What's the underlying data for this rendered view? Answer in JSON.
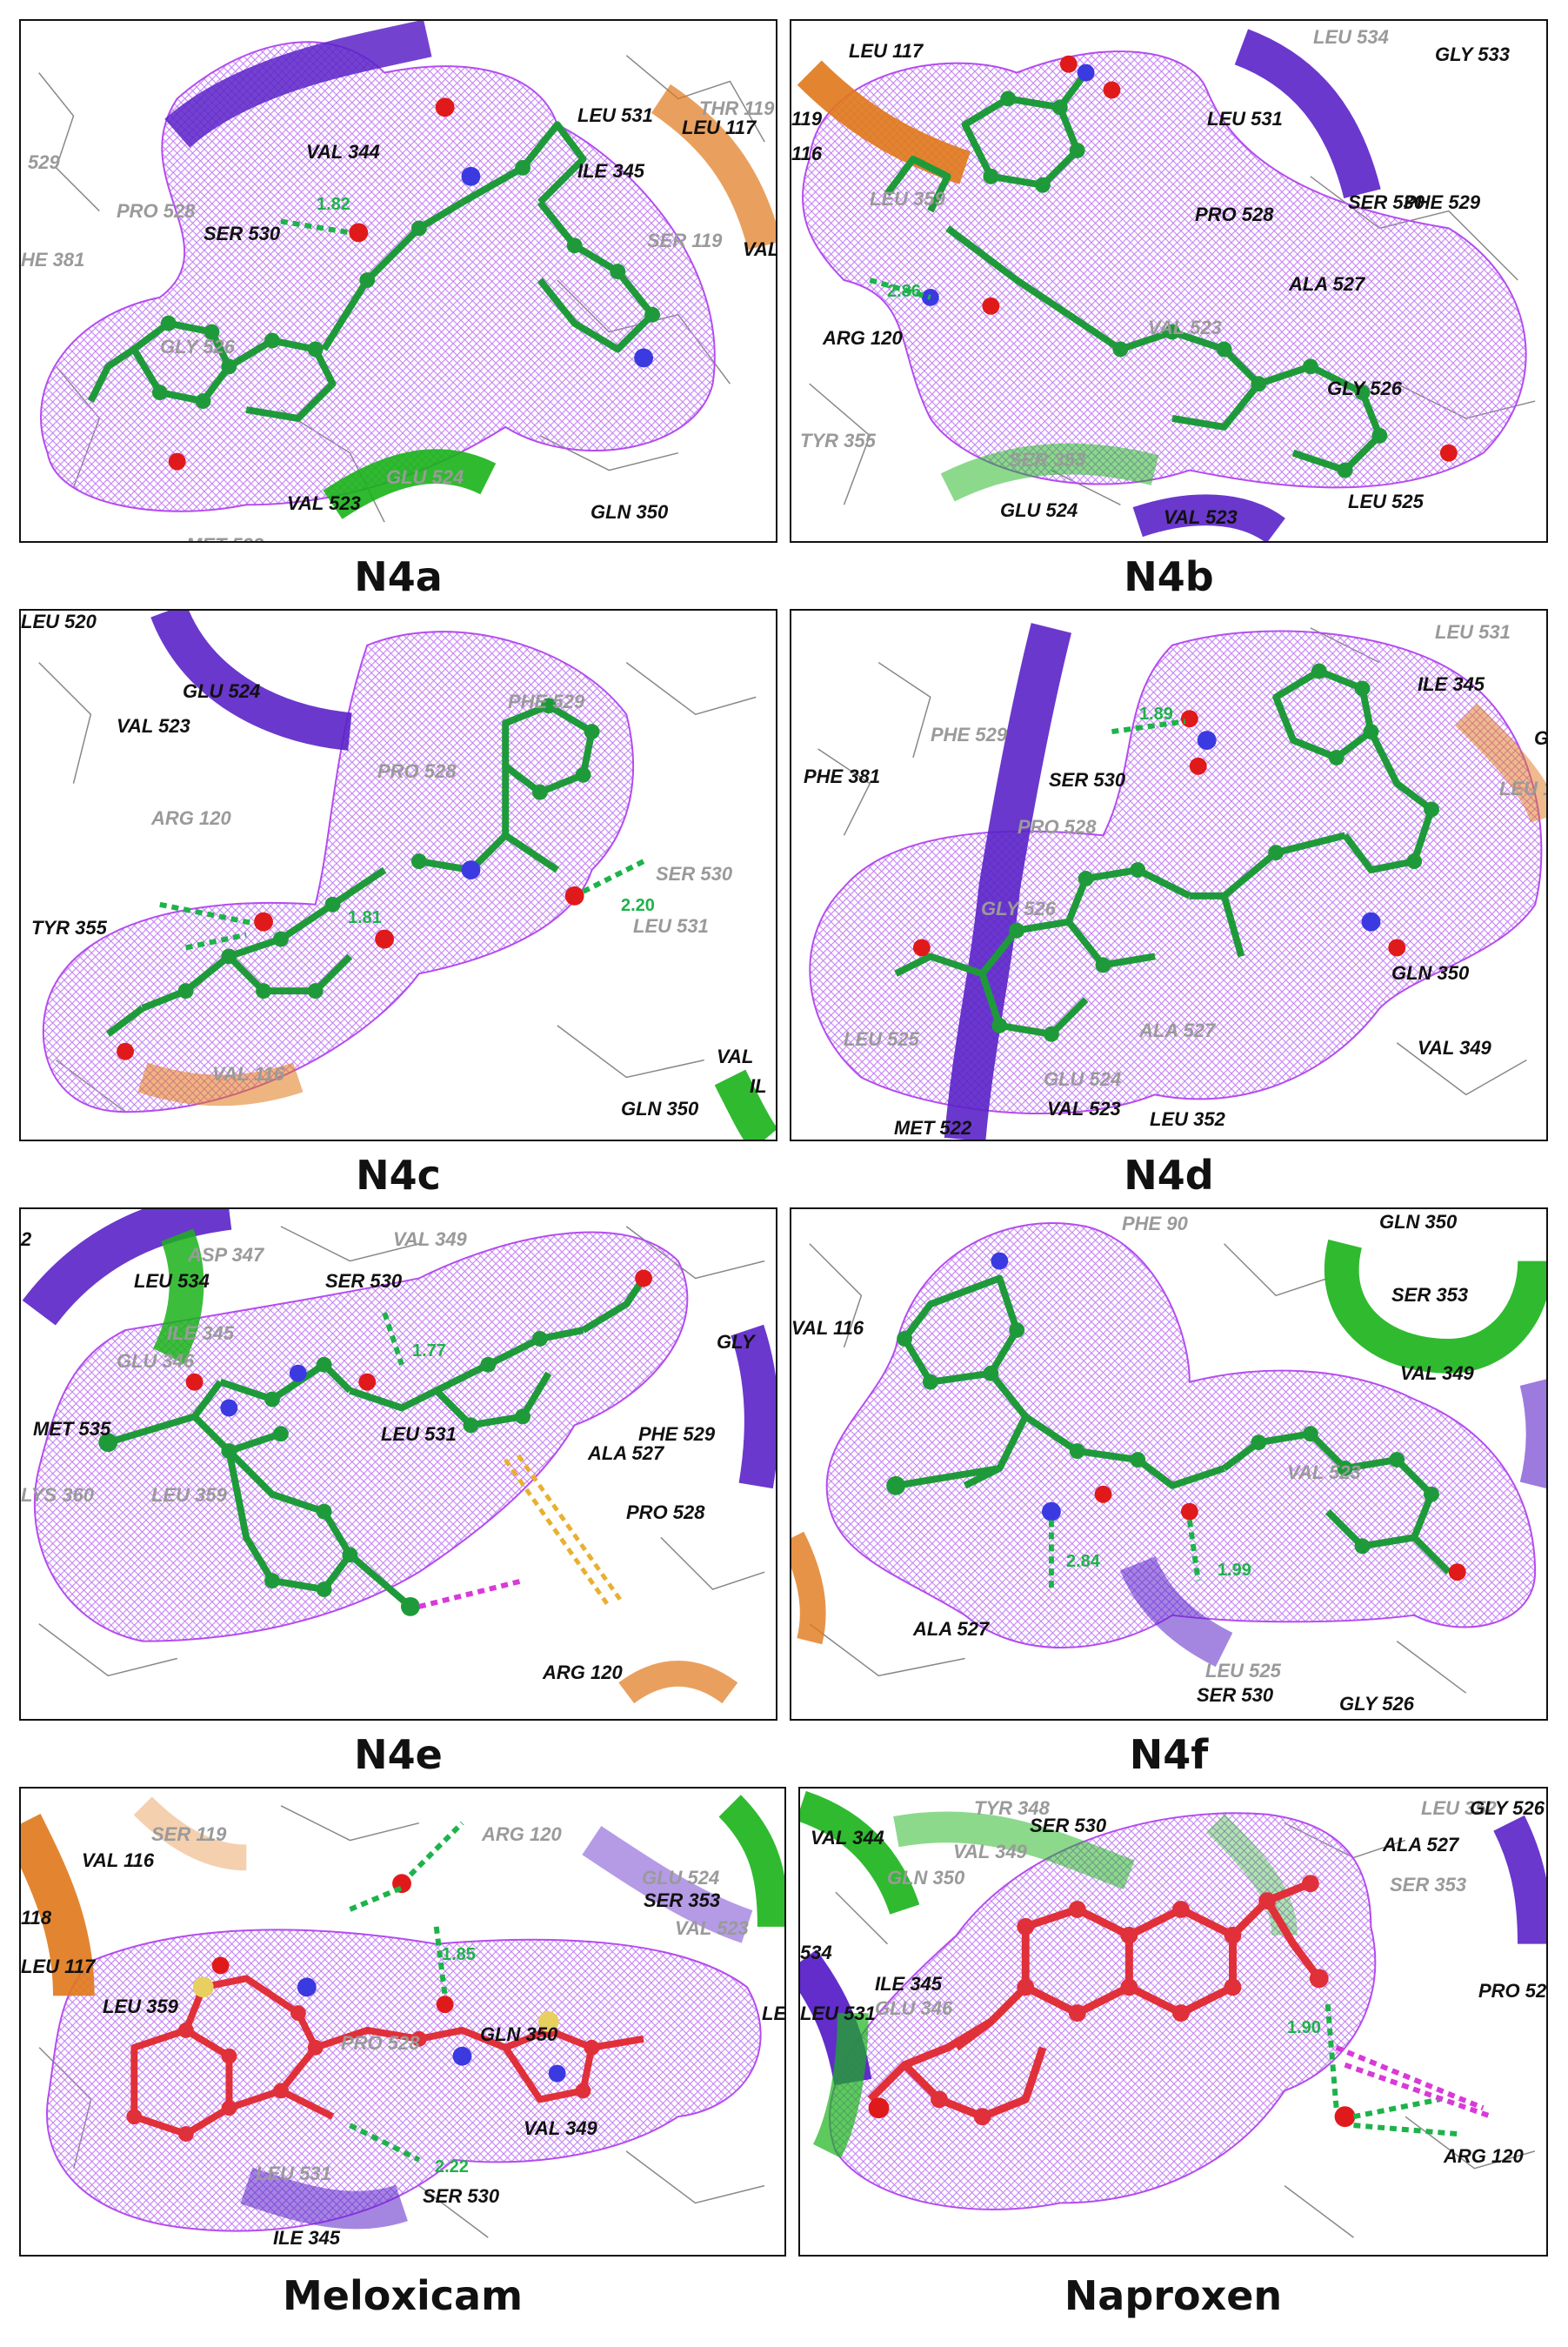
{
  "panels": [
    {
      "id": "N4a",
      "caption": "N4a",
      "residues": [
        "LEU 531",
        "VAL 344",
        "ILE 345",
        "SER 530",
        "PRO 528",
        "HE 381",
        "529",
        "GLY 526",
        "VAL 523",
        "GLU 524",
        "GLN 350",
        "MET 522",
        "LEU 117",
        "THR 119",
        "SER 119",
        "VAL"
      ],
      "distances": [
        "1.82"
      ],
      "ligand_color": "#1f9a3a"
    },
    {
      "id": "N4b",
      "caption": "N4b",
      "residues": [
        "LEU 117",
        "LEU 534",
        "GLY 533",
        "LEU 531",
        "119",
        "116",
        "PRO 528",
        "SER 530",
        "PHE 529",
        "ALA 527",
        "ARG 120",
        "VAL 523",
        "GLY 526",
        "TYR 355",
        "SER 353",
        "GLU 524",
        "VAL 523",
        "LEU 525",
        "LEU 359"
      ],
      "distances": [
        "2.86"
      ],
      "ligand_color": "#1f9a3a"
    },
    {
      "id": "N4c",
      "caption": "N4c",
      "residues": [
        "LEU 520",
        "GLU 524",
        "VAL 523",
        "PHE 529",
        "PRO 528",
        "ARG 120",
        "SER 530",
        "TYR 355",
        "LEU 531",
        "VAL 116",
        "GLN 350",
        "VAL",
        "IL"
      ],
      "distances": [
        "1.81",
        "2.20"
      ],
      "ligand_color": "#1f9a3a"
    },
    {
      "id": "N4d",
      "caption": "N4d",
      "residues": [
        "LEU 531",
        "PHE 529",
        "ILE 345",
        "SER 530",
        "PHE 381",
        "PRO 528",
        "GLY 526",
        "GLN 350",
        "LEU 525",
        "ALA 527",
        "VAL 349",
        "GLU 524",
        "VAL 523",
        "LEU 352",
        "MET 522",
        "G",
        "LEU 1"
      ],
      "distances": [
        "1.89"
      ],
      "ligand_color": "#1f9a3a"
    },
    {
      "id": "N4e",
      "caption": "N4e",
      "residues": [
        "ASP 347",
        "VAL 349",
        "LEU 534",
        "SER 530",
        "ILE 345",
        "GLU 346",
        "MET 535",
        "LEU 531",
        "PHE 529",
        "ALA 527",
        "GLY",
        "LYS 360",
        "LEU 359",
        "PRO 528",
        "ARG 120",
        "2"
      ],
      "distances": [
        "1.77"
      ],
      "ligand_color": "#1f9a3a"
    },
    {
      "id": "N4f",
      "caption": "N4f",
      "residues": [
        "GLN 350",
        "SER 353",
        "VAL 116",
        "VAL 349",
        "ALA 527",
        "LEU 525",
        "SER 530",
        "GLY 526",
        "PHE 90",
        "VAL 523"
      ],
      "distances": [
        "2.84",
        "1.99"
      ],
      "ligand_color": "#1f9a3a"
    },
    {
      "id": "Meloxicam",
      "caption": "Meloxicam",
      "residues": [
        "VAL 116",
        "SER 119",
        "ARG 120",
        "GLU 524",
        "SER 353",
        "VAL 523",
        "118",
        "LEU 117",
        "LEU 359",
        "PRO 528",
        "GLN 350",
        "VAL 349",
        "LEU 531",
        "SER 530",
        "ILE 345",
        "LE"
      ],
      "distances": [
        "1.85",
        "2.22"
      ],
      "ligand_color": "#e0303a"
    },
    {
      "id": "Naproxen",
      "caption": "Naproxen",
      "residues": [
        "TYR 348",
        "LEU 352",
        "GLY 526",
        "VAL 344",
        "SER 530",
        "ALA 527",
        "VAL 349",
        "GLN 350",
        "SER 353",
        "534",
        "ILE 345",
        "GLU 346",
        "PRO 52",
        "LEU 531",
        "ARG 120"
      ],
      "distances": [
        "1.90"
      ],
      "ligand_color": "#e0303a"
    }
  ],
  "colors": {
    "mesh": "#b44cf0",
    "helix_purple": "#5a22c8",
    "helix_green": "#1ab31a",
    "helix_orange": "#e0781a",
    "hbond": "#1db34a",
    "ligand_green": "#1f9a3a",
    "ligand_red": "#e0303a"
  }
}
